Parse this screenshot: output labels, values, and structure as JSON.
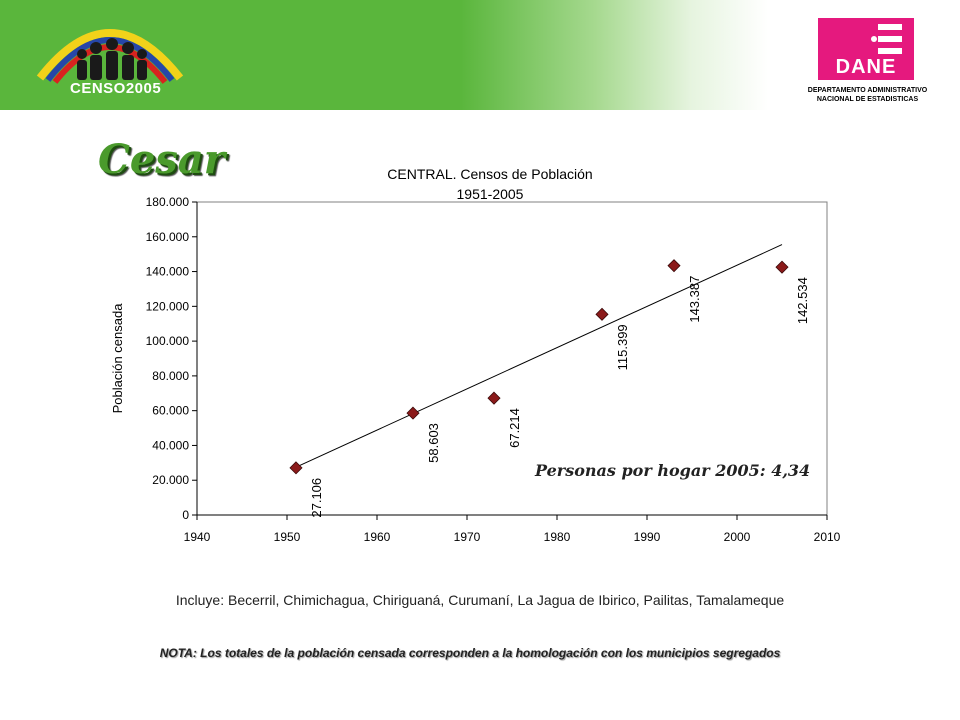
{
  "header": {
    "censo_logo_text": "CENSO2005",
    "dane_logo_text": "DANE",
    "dane_subtitle_line1": "DEPARTAMENTO ADMINISTRATIVO",
    "dane_subtitle_line2": "NACIONAL DE ESTADISTICAS"
  },
  "page_title": "Cesar",
  "chart_data": {
    "type": "scatter",
    "title_line1": "CENTRAL. Censos de Población",
    "title_line2": "1951-2005",
    "ylabel": "Población censada",
    "xlabel": "",
    "xlim": [
      1940,
      2010
    ],
    "ylim": [
      0,
      180000
    ],
    "x_ticks": [
      "1940",
      "1950",
      "1960",
      "1970",
      "1980",
      "1990",
      "2000",
      "2010"
    ],
    "y_ticks": [
      "0",
      "20.000",
      "40.000",
      "60.000",
      "80.000",
      "100.000",
      "120.000",
      "140.000",
      "160.000",
      "180.000"
    ],
    "grid": false,
    "series": [
      {
        "marker": "diamond",
        "color": "#8b1a1a",
        "points": [
          {
            "x": 1951,
            "y": 27106,
            "label": "27.106"
          },
          {
            "x": 1964,
            "y": 58603,
            "label": "58.603"
          },
          {
            "x": 1973,
            "y": 67214,
            "label": "67.214"
          },
          {
            "x": 1985,
            "y": 115399,
            "label": "115.399"
          },
          {
            "x": 1993,
            "y": 143387,
            "label": "143.387"
          },
          {
            "x": 2005,
            "y": 142534,
            "label": "142.534"
          }
        ]
      }
    ],
    "trendline": {
      "x": [
        1951,
        2005
      ],
      "y": [
        27500,
        155500
      ]
    },
    "annotation": "Personas por hogar 2005: 4,34"
  },
  "footer": {
    "includes": "Incluye: Becerril, Chimichagua, Chiriguaná, Curumaní, La Jagua de Ibirico, Pailitas, Tamalameque",
    "note": "NOTA: Los totales de la población censada corresponden a la homologación con los municipios segregados"
  },
  "colors": {
    "banner_green": "#5ab63c",
    "dane_magenta": "#e5197e",
    "title_green": "#4a9a2c",
    "marker": "#8b1a1a"
  }
}
